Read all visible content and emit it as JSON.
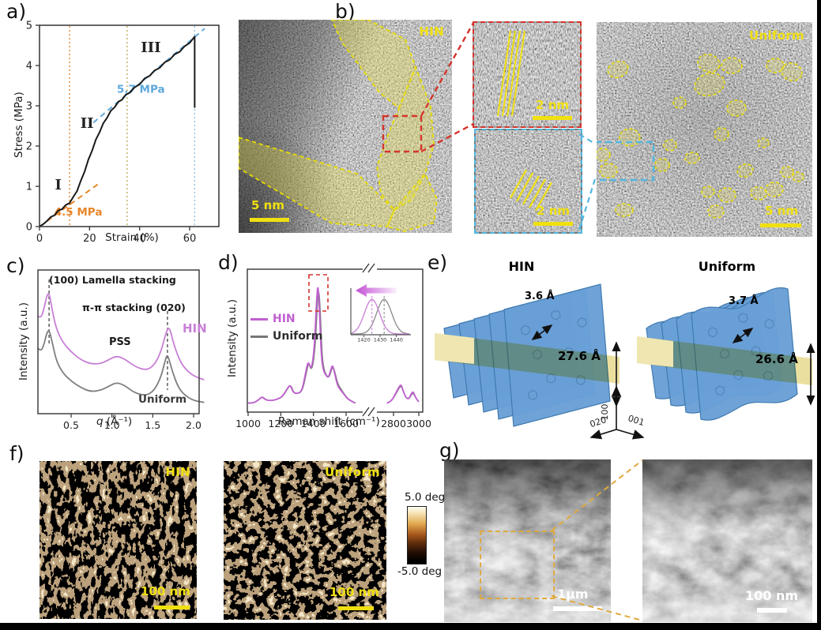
{
  "panel_a": {
    "label": "a)",
    "xlabel": "Strain (%)",
    "ylabel": "Stress (MPa)"
  },
  "panel_b": {
    "label": "b)",
    "left_tag": "HIN",
    "right_tag": "Uniform",
    "scalebar_left": "5 nm",
    "scalebar_right": "5 nm",
    "inset_top_scalebar": "2 nm",
    "inset_bottom_scalebar": "2 nm"
  },
  "panel_c": {
    "label": "c)",
    "ylabel": "Intensity  (a.u.)",
    "xlabel_q": "q",
    "xlabel_unit": " (Å⁻¹)",
    "ann_lamella": "(100) Lamella  stacking",
    "ann_pipi": "π-π stacking (020)",
    "ann_pss": "PSS",
    "series_hin": "HIN",
    "series_uniform": "Uniform"
  },
  "panel_d": {
    "label": "d)",
    "ylabel": "Intensity (a.u.)",
    "xlabel": "Raman shift (cm⁻¹)",
    "legend_hin": "HIN",
    "legend_uniform": "Uniform"
  },
  "panel_e": {
    "label": "e)",
    "left_title": "HIN",
    "right_title": "Uniform",
    "left_spacing": "3.6 Å",
    "left_height": "27.6 Å",
    "right_spacing": "3.7 Å",
    "right_height": "26.6 Å",
    "axes": [
      "100",
      "020",
      "001"
    ]
  },
  "panel_f": {
    "label": "f)",
    "left_tag": "HIN",
    "right_tag": "Uniform",
    "scalebar_left": "100 nm",
    "scalebar_right": "100 nm",
    "cbar_max": "5.0 deg",
    "cbar_min": "-5.0 deg"
  },
  "panel_g": {
    "label": "g)",
    "scalebar_left": "1μm",
    "scalebar_right": "100 nm"
  },
  "chart_data": [
    {
      "id": "stress_strain",
      "type": "line",
      "xlabel": "Strain (%)",
      "ylabel": "Stress (MPa)",
      "xlim": [
        0,
        71
      ],
      "ylim": [
        0,
        5
      ],
      "xticks": [
        0,
        20,
        40,
        60
      ],
      "yticks": [
        0,
        1,
        2,
        3,
        4,
        5
      ],
      "series": [
        {
          "name": "stress",
          "color": "#1a1a1a",
          "x": [
            0,
            1.5,
            3,
            4.5,
            6,
            7.5,
            9,
            10.5,
            12,
            13.5,
            15,
            16.5,
            18,
            19.5,
            21,
            22.5,
            24,
            25.5,
            27,
            28.5,
            30,
            31.5,
            33,
            34.5,
            36,
            38,
            40,
            42,
            44,
            46,
            48,
            50,
            52,
            54,
            56,
            58,
            60,
            61.5,
            62,
            62
          ],
          "y": [
            0,
            0.06,
            0.14,
            0.22,
            0.3,
            0.38,
            0.45,
            0.52,
            0.6,
            0.72,
            0.9,
            1.12,
            1.38,
            1.64,
            1.9,
            2.14,
            2.36,
            2.55,
            2.72,
            2.86,
            2.98,
            3.08,
            3.17,
            3.26,
            3.34,
            3.44,
            3.55,
            3.66,
            3.76,
            3.86,
            3.96,
            4.06,
            4.16,
            4.26,
            4.36,
            4.46,
            4.58,
            4.68,
            4.72,
            2.95
          ]
        }
      ],
      "guides": [
        {
          "label": "4.5 MPa",
          "color": "#e8872b",
          "x": [
            0,
            23.5
          ],
          "y": [
            0,
            1.06
          ],
          "label_at": [
            15.5,
            0.27
          ]
        },
        {
          "label": "5.7 MPa",
          "color": "#5fa8dc",
          "x": [
            21.5,
            66
          ],
          "y": [
            2.58,
            4.92
          ],
          "label_at": [
            40.5,
            3.32
          ]
        }
      ],
      "vlines": [
        {
          "x": 12,
          "color": "#e8872b"
        },
        {
          "x": 35,
          "color": "#bfae5a"
        },
        {
          "x": 62,
          "color": "#90bfe0"
        }
      ],
      "region_labels": [
        {
          "text": "I",
          "x": 7.5,
          "y": 0.92
        },
        {
          "text": "II",
          "x": 19,
          "y": 2.45
        },
        {
          "text": "III",
          "x": 44.5,
          "y": 4.33
        }
      ]
    },
    {
      "id": "giwaxs",
      "type": "line",
      "xlabel": "q (Å⁻¹)",
      "ylabel": "Intensity (a.u.)",
      "xlim": [
        0.09,
        2.13
      ],
      "xticks": [
        0.5,
        1.0,
        1.5,
        2.0
      ],
      "peak_markers": [
        0.23,
        1.68
      ],
      "series": [
        {
          "name": "HIN",
          "color": "#c77fd6",
          "x": [
            0.09,
            0.13,
            0.17,
            0.2,
            0.23,
            0.27,
            0.32,
            0.4,
            0.5,
            0.62,
            0.74,
            0.86,
            0.96,
            1.05,
            1.15,
            1.28,
            1.42,
            1.52,
            1.6,
            1.66,
            1.7,
            1.76,
            1.84,
            1.93,
            2.03,
            2.13
          ],
          "y": [
            0.7,
            0.68,
            0.76,
            0.85,
            0.88,
            0.74,
            0.6,
            0.5,
            0.43,
            0.37,
            0.34,
            0.34,
            0.37,
            0.4,
            0.38,
            0.32,
            0.29,
            0.33,
            0.43,
            0.57,
            0.63,
            0.48,
            0.35,
            0.28,
            0.24,
            0.22
          ]
        },
        {
          "name": "Uniform",
          "color": "#7f7f7f",
          "x": [
            0.09,
            0.13,
            0.17,
            0.2,
            0.23,
            0.27,
            0.32,
            0.4,
            0.5,
            0.62,
            0.74,
            0.86,
            0.96,
            1.05,
            1.15,
            1.28,
            1.42,
            1.52,
            1.6,
            1.65,
            1.68,
            1.74,
            1.82,
            1.92,
            2.02,
            2.13
          ],
          "y": [
            0.46,
            0.43,
            0.49,
            0.57,
            0.6,
            0.5,
            0.36,
            0.27,
            0.21,
            0.16,
            0.13,
            0.14,
            0.17,
            0.2,
            0.18,
            0.12,
            0.1,
            0.14,
            0.24,
            0.36,
            0.42,
            0.28,
            0.15,
            0.09,
            0.06,
            0.05
          ]
        }
      ]
    },
    {
      "id": "raman",
      "type": "line",
      "xlabel": "Raman shift (cm⁻¹)",
      "ylabel": "Intensity (a.u.)",
      "xticks_left": [
        1000,
        1200,
        1400,
        1600
      ],
      "xticks_right": [
        2800,
        3000
      ],
      "series": [
        {
          "name": "Uniform",
          "color": "#7f7f7f",
          "x": [
            1000,
            1030,
            1060,
            1088,
            1103,
            1122,
            1152,
            1182,
            1212,
            1242,
            1260,
            1278,
            1302,
            1332,
            1355,
            1371,
            1385,
            1398,
            1412,
            1422,
            1432,
            1442,
            1452,
            1463,
            1478,
            1495,
            1510,
            1520,
            1534,
            1550,
            1567,
            1587,
            1612,
            1642,
            1658
          ],
          "y": [
            0.05,
            0.05,
            0.07,
            0.1,
            0.08,
            0.07,
            0.07,
            0.08,
            0.1,
            0.16,
            0.19,
            0.13,
            0.12,
            0.14,
            0.27,
            0.36,
            0.3,
            0.34,
            0.5,
            0.76,
            0.93,
            0.74,
            0.42,
            0.31,
            0.26,
            0.24,
            0.3,
            0.33,
            0.27,
            0.19,
            0.16,
            0.12,
            0.08,
            0.06,
            0.05
          ],
          "x2": [
            2748,
            2775,
            2800,
            2825,
            2848,
            2862,
            2880,
            2900,
            2920,
            2940,
            2955,
            2975,
            3000
          ],
          "y2": [
            0.05,
            0.06,
            0.09,
            0.13,
            0.17,
            0.18,
            0.13,
            0.09,
            0.08,
            0.11,
            0.13,
            0.09,
            0.06
          ]
        },
        {
          "name": "HIN",
          "color": "#c060d0",
          "x": [
            1000,
            1030,
            1060,
            1085,
            1100,
            1120,
            1150,
            1180,
            1210,
            1240,
            1258,
            1275,
            1300,
            1330,
            1352,
            1368,
            1382,
            1395,
            1408,
            1418,
            1428,
            1438,
            1448,
            1460,
            1475,
            1492,
            1508,
            1518,
            1532,
            1548,
            1565,
            1585,
            1610,
            1640,
            1655
          ],
          "y": [
            0.05,
            0.05,
            0.07,
            0.1,
            0.08,
            0.07,
            0.07,
            0.08,
            0.1,
            0.16,
            0.19,
            0.13,
            0.12,
            0.14,
            0.28,
            0.37,
            0.31,
            0.35,
            0.52,
            0.8,
            0.97,
            0.72,
            0.4,
            0.3,
            0.26,
            0.24,
            0.31,
            0.34,
            0.26,
            0.18,
            0.15,
            0.12,
            0.08,
            0.06,
            0.05
          ],
          "x2": [
            2748,
            2775,
            2800,
            2825,
            2848,
            2862,
            2880,
            2900,
            2920,
            2940,
            2955,
            2975,
            3000
          ],
          "y2": [
            0.05,
            0.06,
            0.09,
            0.14,
            0.18,
            0.19,
            0.13,
            0.09,
            0.08,
            0.12,
            0.14,
            0.09,
            0.06
          ]
        }
      ]
    },
    {
      "id": "raman_inset",
      "type": "line",
      "xlim": [
        1412,
        1448
      ],
      "xticks": [
        1420,
        1430,
        1440
      ],
      "hin_center": 1425,
      "uniform_center": 1432.5,
      "sigma": 6.5,
      "hin_color": "#c77fd6",
      "uniform_color": "#8a8a8a"
    }
  ]
}
